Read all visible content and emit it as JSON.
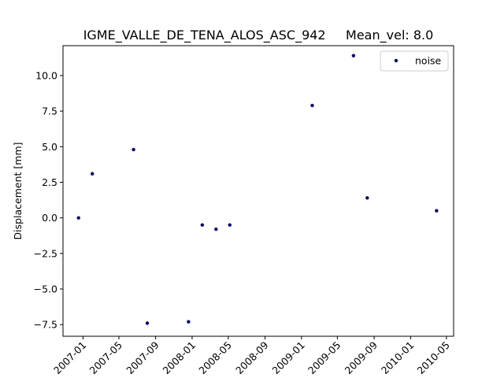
{
  "chart_data": {
    "type": "scatter",
    "title": "IGME_VALLE_DE_TENA_ALOS_ASC_942     Mean_vel: 8.0",
    "xlabel": "",
    "ylabel": "Displacement [mm]",
    "x_axis_type": "date",
    "xlim": [
      "2006-10-26",
      "2010-05-25"
    ],
    "ylim": [
      -8.32,
      12.1
    ],
    "x_ticks": [
      {
        "date": "2007-01-01",
        "label": "2007-01"
      },
      {
        "date": "2007-05-01",
        "label": "2007-05"
      },
      {
        "date": "2007-09-01",
        "label": "2007-09"
      },
      {
        "date": "2008-01-01",
        "label": "2008-01"
      },
      {
        "date": "2008-05-01",
        "label": "2008-05"
      },
      {
        "date": "2008-09-01",
        "label": "2008-09"
      },
      {
        "date": "2009-01-01",
        "label": "2009-01"
      },
      {
        "date": "2009-05-01",
        "label": "2009-05"
      },
      {
        "date": "2009-09-01",
        "label": "2009-09"
      },
      {
        "date": "2010-01-01",
        "label": "2010-01"
      },
      {
        "date": "2010-05-01",
        "label": "2010-05"
      }
    ],
    "y_ticks": [
      {
        "value": -7.5,
        "label": "−7.5"
      },
      {
        "value": -5.0,
        "label": "−5.0"
      },
      {
        "value": -2.5,
        "label": "−2.5"
      },
      {
        "value": 0.0,
        "label": "0.0"
      },
      {
        "value": 2.5,
        "label": "2.5"
      },
      {
        "value": 5.0,
        "label": "5.0"
      },
      {
        "value": 7.5,
        "label": "7.5"
      },
      {
        "value": 10.0,
        "label": "10.0"
      }
    ],
    "grid": false,
    "legend": {
      "placement": "top-right"
    },
    "series": [
      {
        "name": "noise",
        "color": "#00007f",
        "marker": "dot",
        "points": [
          {
            "x": "2006-12-17",
            "y": 0.0
          },
          {
            "x": "2007-02-01",
            "y": 3.1
          },
          {
            "x": "2007-06-19",
            "y": 4.8
          },
          {
            "x": "2007-08-04",
            "y": -7.4
          },
          {
            "x": "2007-12-20",
            "y": -7.3
          },
          {
            "x": "2008-02-04",
            "y": -0.5
          },
          {
            "x": "2008-03-21",
            "y": -0.8
          },
          {
            "x": "2008-05-06",
            "y": -0.5
          },
          {
            "x": "2009-02-06",
            "y": 7.9
          },
          {
            "x": "2009-06-24",
            "y": 11.4
          },
          {
            "x": "2009-08-09",
            "y": 1.4
          },
          {
            "x": "2010-03-29",
            "y": 0.5
          }
        ]
      }
    ]
  }
}
